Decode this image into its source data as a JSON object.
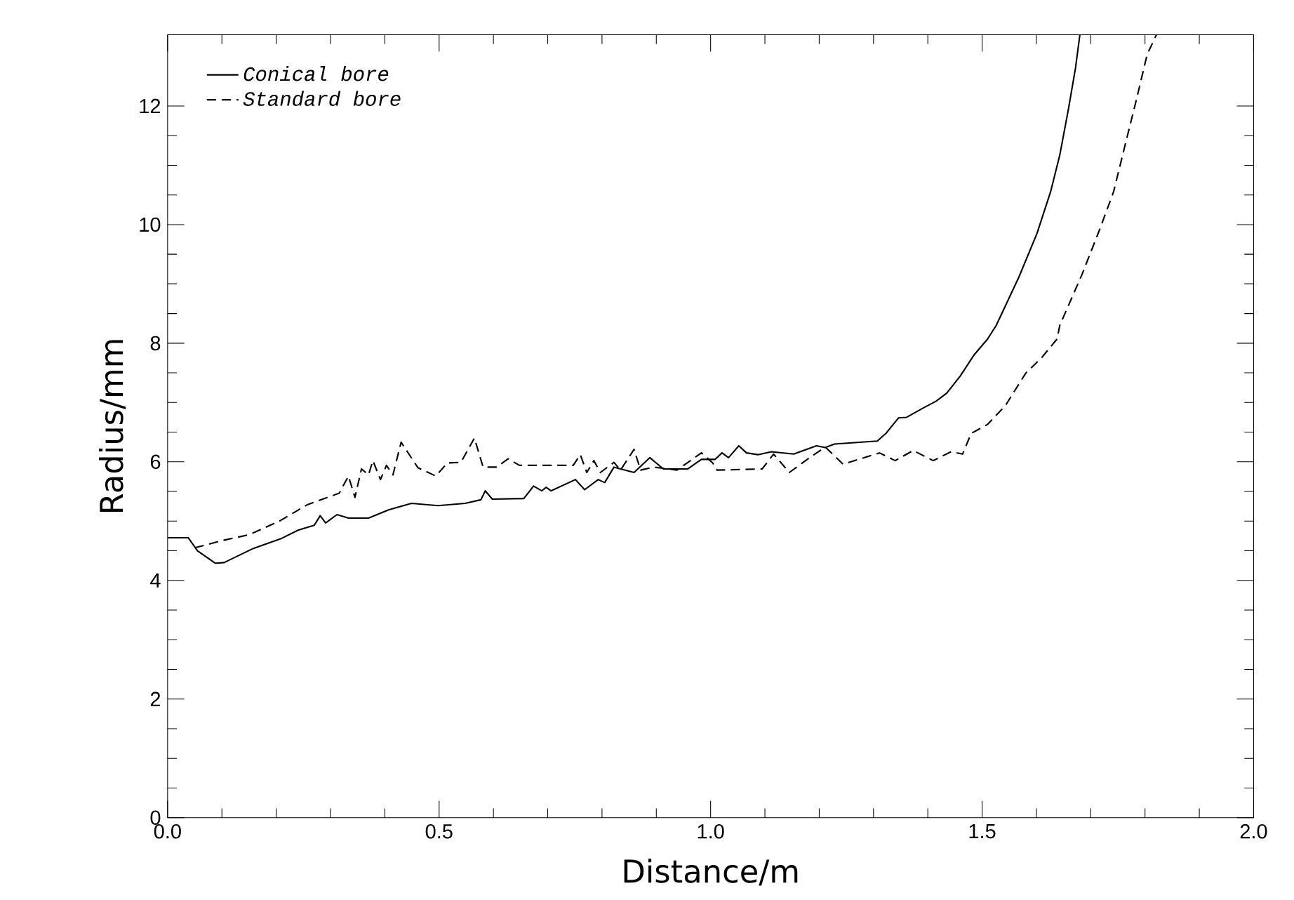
{
  "chart_data": {
    "type": "line",
    "xlabel": "Distance/m",
    "ylabel": "Radius/mm",
    "xlim": [
      0,
      2.0
    ],
    "ylim": [
      0,
      13.2
    ],
    "xticks": [
      {
        "value": 0,
        "label": "0.0"
      },
      {
        "value": 0.5,
        "label": "0.5"
      },
      {
        "value": 1.0,
        "label": "1.0"
      },
      {
        "value": 1.5,
        "label": "1.5"
      },
      {
        "value": 2.0,
        "label": "2.0"
      }
    ],
    "yticks": [
      0,
      2,
      4,
      6,
      8,
      10,
      12
    ],
    "legend": "top left",
    "series": [
      {
        "name": "Conical bore",
        "color": "#000000",
        "line_style": "solid",
        "x": [
          0,
          0.038,
          0.055,
          0.088,
          0.104,
          0.158,
          0.208,
          0.241,
          0.27,
          0.281,
          0.291,
          0.312,
          0.333,
          0.37,
          0.407,
          0.449,
          0.498,
          0.548,
          0.577,
          0.585,
          0.598,
          0.656,
          0.674,
          0.689,
          0.697,
          0.706,
          0.751,
          0.768,
          0.793,
          0.805,
          0.822,
          0.859,
          0.888,
          0.913,
          0.958,
          0.983,
          1.008,
          1.021,
          1.033,
          1.052,
          1.066,
          1.087,
          1.112,
          1.153,
          1.195,
          1.211,
          1.228,
          1.307,
          1.323,
          1.346,
          1.361,
          1.394,
          1.415,
          1.435,
          1.46,
          1.485,
          1.51,
          1.526,
          1.568,
          1.601,
          1.626,
          1.643,
          1.659,
          1.672,
          1.68
        ],
        "values": [
          4.72,
          4.72,
          4.5,
          4.29,
          4.3,
          4.54,
          4.7,
          4.85,
          4.93,
          5.09,
          4.97,
          5.11,
          5.05,
          5.05,
          5.19,
          5.3,
          5.26,
          5.3,
          5.36,
          5.51,
          5.37,
          5.38,
          5.59,
          5.51,
          5.57,
          5.51,
          5.7,
          5.53,
          5.7,
          5.65,
          5.91,
          5.82,
          6.07,
          5.88,
          5.88,
          6.04,
          6.04,
          6.15,
          6.07,
          6.27,
          6.15,
          6.12,
          6.17,
          6.13,
          6.27,
          6.24,
          6.3,
          6.35,
          6.48,
          6.74,
          6.75,
          6.92,
          7.02,
          7.16,
          7.45,
          7.8,
          8.07,
          8.3,
          9.12,
          9.85,
          10.55,
          11.17,
          11.95,
          12.64,
          13.2
        ]
      },
      {
        "name": "Standard bore",
        "color": "#000000",
        "line_style": "dashed",
        "x": [
          0.05,
          0.1,
          0.15,
          0.208,
          0.258,
          0.316,
          0.333,
          0.345,
          0.357,
          0.37,
          0.378,
          0.392,
          0.403,
          0.415,
          0.43,
          0.461,
          0.494,
          0.515,
          0.54,
          0.565,
          0.581,
          0.606,
          0.627,
          0.648,
          0.747,
          0.76,
          0.772,
          0.785,
          0.797,
          0.822,
          0.834,
          0.859,
          0.871,
          0.896,
          0.938,
          0.983,
          1.004,
          1.012,
          1.095,
          1.116,
          1.145,
          1.178,
          1.211,
          1.244,
          1.311,
          1.34,
          1.373,
          1.41,
          1.443,
          1.464,
          1.48,
          1.51,
          1.543,
          1.58,
          1.61,
          1.638,
          1.643,
          1.684,
          1.717,
          1.742,
          1.763,
          1.784,
          1.804,
          1.821
        ],
        "values": [
          4.55,
          4.67,
          4.77,
          5.01,
          5.28,
          5.47,
          5.76,
          5.4,
          5.88,
          5.78,
          6.02,
          5.7,
          5.94,
          5.78,
          6.33,
          5.9,
          5.76,
          5.98,
          5.99,
          6.4,
          5.91,
          5.91,
          6.05,
          5.94,
          5.94,
          6.12,
          5.82,
          6.02,
          5.82,
          5.99,
          5.86,
          6.21,
          5.86,
          5.91,
          5.86,
          6.15,
          5.98,
          5.86,
          5.88,
          6.13,
          5.82,
          6.04,
          6.25,
          5.96,
          6.15,
          6.02,
          6.19,
          6.02,
          6.17,
          6.13,
          6.48,
          6.63,
          6.95,
          7.49,
          7.76,
          8.07,
          8.3,
          9.16,
          9.93,
          10.55,
          11.33,
          12.1,
          12.87,
          13.2
        ]
      }
    ]
  }
}
